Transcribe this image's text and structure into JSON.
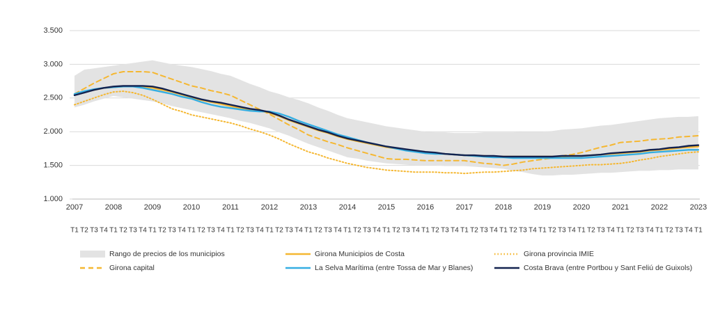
{
  "chart_data": {
    "type": "line",
    "categories": [
      "T1",
      "T2",
      "T3",
      "T4",
      "T1",
      "T2",
      "T3",
      "T4",
      "T1",
      "T2",
      "T3",
      "T4",
      "T1",
      "T2",
      "T3",
      "T4",
      "T1",
      "T2",
      "T3",
      "T4",
      "T1",
      "T2",
      "T3",
      "T4",
      "T1",
      "T2",
      "T3",
      "T4",
      "T1",
      "T2",
      "T3",
      "T4",
      "T1",
      "T2",
      "T3",
      "T4",
      "T1",
      "T2",
      "T3",
      "T4",
      "T1",
      "T2",
      "T3",
      "T4",
      "T1",
      "T2",
      "T3",
      "T4",
      "T1",
      "T2",
      "T3",
      "T4",
      "T1",
      "T2",
      "T3",
      "T4",
      "T1",
      "T2",
      "T3",
      "T4",
      "T1",
      "T2",
      "T3",
      "T4",
      "T1"
    ],
    "years": [
      "2007",
      "2008",
      "2009",
      "2010",
      "2011",
      "2012",
      "2013",
      "2014",
      "2015",
      "2016",
      "2017",
      "2018",
      "2019",
      "2020",
      "2021",
      "2022",
      "2023"
    ],
    "ylim": [
      1000,
      3500
    ],
    "yticks": [
      {
        "value": 1000,
        "label": "1.000"
      },
      {
        "value": 1500,
        "label": "1.500"
      },
      {
        "value": 2000,
        "label": "2.000"
      },
      {
        "value": 2500,
        "label": "2.500"
      },
      {
        "value": 3000,
        "label": "3.000"
      },
      {
        "value": 3500,
        "label": "3.500"
      }
    ],
    "grid": true,
    "band": {
      "name": "Rango de precios de los municipios",
      "color": "#e3e3e3",
      "high": [
        2830,
        2920,
        2940,
        2960,
        2980,
        3000,
        3020,
        3040,
        3060,
        3030,
        3000,
        2980,
        2960,
        2930,
        2900,
        2860,
        2830,
        2770,
        2710,
        2660,
        2600,
        2560,
        2510,
        2470,
        2420,
        2360,
        2310,
        2250,
        2200,
        2170,
        2140,
        2110,
        2080,
        2060,
        2040,
        2020,
        2000,
        1990,
        1990,
        1980,
        1980,
        1980,
        1990,
        1990,
        1990,
        1990,
        2000,
        2000,
        2000,
        2010,
        2030,
        2040,
        2050,
        2070,
        2090,
        2100,
        2120,
        2140,
        2160,
        2180,
        2200,
        2210,
        2220,
        2220,
        2230
      ],
      "low": [
        2360,
        2400,
        2450,
        2490,
        2530,
        2510,
        2490,
        2470,
        2450,
        2420,
        2380,
        2350,
        2320,
        2290,
        2260,
        2230,
        2200,
        2160,
        2130,
        2090,
        2050,
        1990,
        1940,
        1880,
        1820,
        1770,
        1720,
        1670,
        1620,
        1600,
        1570,
        1550,
        1530,
        1520,
        1510,
        1500,
        1500,
        1500,
        1490,
        1490,
        1490,
        1480,
        1470,
        1460,
        1450,
        1420,
        1400,
        1370,
        1350,
        1350,
        1360,
        1360,
        1370,
        1380,
        1390,
        1390,
        1400,
        1410,
        1420,
        1420,
        1430,
        1430,
        1440,
        1440,
        1440
      ]
    },
    "series": [
      {
        "name": "Girona provincia IMIE",
        "color": "#f5b731",
        "dash": "dotted",
        "values": [
          2400,
          2450,
          2500,
          2550,
          2590,
          2600,
          2580,
          2540,
          2480,
          2410,
          2340,
          2300,
          2250,
          2220,
          2190,
          2160,
          2130,
          2090,
          2040,
          2000,
          1950,
          1890,
          1820,
          1760,
          1700,
          1660,
          1610,
          1570,
          1530,
          1500,
          1470,
          1450,
          1430,
          1420,
          1410,
          1400,
          1400,
          1400,
          1390,
          1390,
          1380,
          1390,
          1400,
          1400,
          1410,
          1420,
          1430,
          1450,
          1460,
          1470,
          1480,
          1490,
          1500,
          1510,
          1510,
          1520,
          1530,
          1550,
          1580,
          1600,
          1630,
          1650,
          1670,
          1690,
          1700
        ]
      },
      {
        "name": "Girona capital",
        "color": "#f5b731",
        "dash": "dashed",
        "values": [
          2560,
          2640,
          2720,
          2790,
          2860,
          2890,
          2890,
          2890,
          2880,
          2830,
          2780,
          2730,
          2680,
          2650,
          2610,
          2580,
          2540,
          2470,
          2400,
          2330,
          2260,
          2180,
          2100,
          2030,
          1950,
          1900,
          1850,
          1810,
          1760,
          1720,
          1680,
          1640,
          1600,
          1590,
          1590,
          1580,
          1570,
          1570,
          1570,
          1570,
          1570,
          1550,
          1530,
          1520,
          1500,
          1520,
          1550,
          1570,
          1590,
          1610,
          1640,
          1660,
          1690,
          1730,
          1770,
          1800,
          1840,
          1850,
          1860,
          1880,
          1890,
          1900,
          1920,
          1930,
          1940
        ]
      },
      {
        "name": "Girona Municipios de Costa",
        "color": "#f5b731",
        "dash": "solid",
        "values": [
          2550,
          2590,
          2620,
          2650,
          2660,
          2670,
          2670,
          2670,
          2650,
          2620,
          2590,
          2550,
          2510,
          2470,
          2440,
          2410,
          2380,
          2350,
          2330,
          2310,
          2280,
          2230,
          2170,
          2120,
          2070,
          2020,
          1980,
          1930,
          1890,
          1860,
          1830,
          1800,
          1770,
          1750,
          1730,
          1710,
          1690,
          1680,
          1670,
          1660,
          1650,
          1640,
          1640,
          1630,
          1630,
          1630,
          1630,
          1630,
          1630,
          1630,
          1630,
          1640,
          1640,
          1650,
          1660,
          1670,
          1680,
          1690,
          1700,
          1720,
          1730,
          1740,
          1760,
          1770,
          1780
        ]
      },
      {
        "name": "La Selva Marítima (entre Tossa de Mar y Blanes)",
        "color": "#35aee2",
        "dash": "solid",
        "values": [
          2560,
          2600,
          2630,
          2650,
          2660,
          2670,
          2670,
          2650,
          2620,
          2590,
          2560,
          2520,
          2490,
          2440,
          2400,
          2370,
          2350,
          2330,
          2310,
          2300,
          2300,
          2270,
          2220,
          2160,
          2110,
          2060,
          2010,
          1960,
          1920,
          1880,
          1840,
          1810,
          1780,
          1750,
          1720,
          1700,
          1680,
          1670,
          1670,
          1660,
          1650,
          1640,
          1630,
          1620,
          1620,
          1610,
          1610,
          1610,
          1610,
          1610,
          1610,
          1610,
          1610,
          1620,
          1630,
          1640,
          1650,
          1660,
          1670,
          1690,
          1700,
          1710,
          1720,
          1730,
          1730
        ]
      },
      {
        "name": "Costa Brava (entre Portbou y Sant Feliú de Guixols)",
        "color": "#13224f",
        "dash": "solid",
        "values": [
          2540,
          2580,
          2620,
          2650,
          2670,
          2680,
          2680,
          2680,
          2670,
          2640,
          2600,
          2560,
          2520,
          2480,
          2450,
          2430,
          2400,
          2370,
          2340,
          2320,
          2290,
          2240,
          2180,
          2130,
          2080,
          2030,
          1990,
          1940,
          1900,
          1870,
          1840,
          1810,
          1780,
          1760,
          1740,
          1720,
          1700,
          1690,
          1670,
          1660,
          1650,
          1650,
          1640,
          1640,
          1630,
          1630,
          1630,
          1630,
          1630,
          1630,
          1640,
          1640,
          1640,
          1650,
          1660,
          1680,
          1690,
          1700,
          1710,
          1730,
          1740,
          1760,
          1770,
          1790,
          1800
        ]
      }
    ]
  }
}
